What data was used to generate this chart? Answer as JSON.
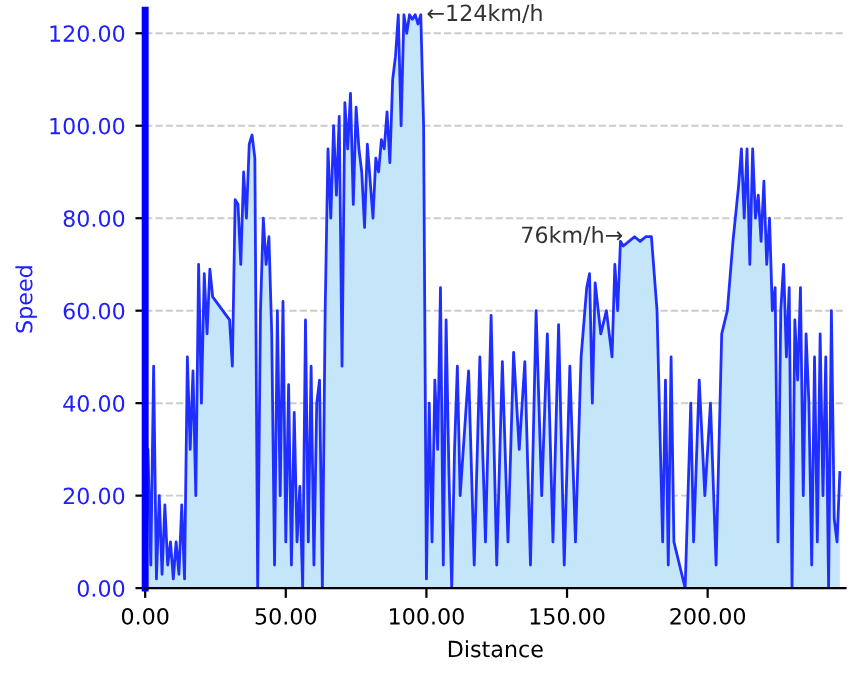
{
  "chart_data": {
    "type": "area",
    "xlabel": "Distance",
    "ylabel": "Speed",
    "xlim": [
      0,
      249
    ],
    "ylim": [
      0,
      125
    ],
    "xticks": [
      {
        "value": 0,
        "label": "0.00"
      },
      {
        "value": 50,
        "label": "50.00"
      },
      {
        "value": 100,
        "label": "100.00"
      },
      {
        "value": 150,
        "label": "150.00"
      },
      {
        "value": 200,
        "label": "200.00"
      }
    ],
    "yticks": [
      {
        "value": 0,
        "label": "0.00"
      },
      {
        "value": 20,
        "label": "20.00"
      },
      {
        "value": 40,
        "label": "40.00"
      },
      {
        "value": 60,
        "label": "60.00"
      },
      {
        "value": 80,
        "label": "80.00"
      },
      {
        "value": 100,
        "label": "100.00"
      },
      {
        "value": 120,
        "label": "120.00"
      }
    ],
    "grid": "y",
    "line_style": "solid",
    "annotations": [
      {
        "text": "←124km/h",
        "x": 100,
        "y": 124
      },
      {
        "text": "76km/h→",
        "x": 170,
        "y": 76
      }
    ],
    "series": [
      {
        "color": "#1f2fff",
        "x": [
          0,
          1,
          2,
          3,
          4,
          5,
          6,
          7,
          8,
          9,
          10,
          11,
          12,
          13,
          14,
          15,
          16,
          17,
          18,
          19,
          20,
          21,
          22,
          23,
          24,
          30,
          31,
          32,
          33,
          34,
          35,
          36,
          37,
          38,
          39,
          40,
          41,
          42,
          43,
          44,
          45,
          46,
          47,
          48,
          49,
          50,
          51,
          52,
          53,
          54,
          55,
          56,
          57,
          58,
          59,
          60,
          61,
          62,
          63,
          64,
          65,
          66,
          67,
          68,
          69,
          70,
          71,
          72,
          73,
          74,
          75,
          76,
          77,
          78,
          79,
          80,
          81,
          82,
          83,
          84,
          85,
          86,
          87,
          88,
          89,
          90,
          91,
          92,
          93,
          94,
          95,
          96,
          97,
          98,
          99,
          100,
          101,
          102,
          103,
          104,
          105,
          106,
          107,
          108,
          109,
          110,
          111,
          112,
          115,
          117,
          119,
          121,
          123,
          125,
          127,
          129,
          131,
          133,
          135,
          137,
          139,
          141,
          143,
          145,
          147,
          149,
          151,
          153,
          155,
          157,
          158,
          159,
          160,
          162,
          164,
          166,
          167,
          168,
          169,
          170,
          172,
          174,
          176,
          178,
          180,
          182,
          184,
          185,
          186,
          187,
          188,
          190,
          192,
          194,
          195,
          197,
          199,
          201,
          203,
          205,
          207,
          209,
          211,
          212,
          213,
          214,
          215,
          216,
          217,
          218,
          219,
          220,
          221,
          222,
          223,
          224,
          225,
          226,
          227,
          228,
          229,
          230,
          231,
          232,
          233,
          234,
          235,
          236,
          237,
          238,
          239,
          240,
          241,
          242,
          243,
          244,
          245,
          246,
          247
        ],
        "values": [
          0,
          30,
          5,
          48,
          2,
          20,
          3,
          18,
          5,
          10,
          2,
          10,
          3,
          18,
          2,
          50,
          30,
          47,
          20,
          70,
          40,
          68,
          55,
          69,
          63,
          58,
          48,
          84,
          83,
          70,
          90,
          80,
          96,
          98,
          93,
          0,
          60,
          80,
          70,
          76,
          55,
          5,
          60,
          20,
          62,
          10,
          44,
          5,
          38,
          10,
          22,
          0,
          58,
          10,
          48,
          5,
          40,
          45,
          0,
          60,
          95,
          80,
          100,
          85,
          102,
          48,
          105,
          95,
          107,
          83,
          104,
          95,
          90,
          78,
          96,
          88,
          80,
          93,
          90,
          97,
          95,
          103,
          92,
          110,
          115,
          124,
          100,
          124,
          120,
          124,
          123,
          124,
          122,
          124,
          100,
          2,
          40,
          10,
          45,
          30,
          65,
          5,
          58,
          25,
          0,
          30,
          48,
          20,
          47,
          5,
          50,
          10,
          59,
          5,
          49,
          10,
          51,
          30,
          49,
          5,
          60,
          20,
          55,
          10,
          57,
          5,
          48,
          10,
          50,
          65,
          68,
          40,
          66,
          55,
          60,
          50,
          70,
          60,
          75,
          74,
          75,
          76,
          75,
          76,
          76,
          60,
          10,
          45,
          5,
          50,
          10,
          5,
          0,
          40,
          10,
          45,
          20,
          40,
          5,
          55,
          60,
          75,
          87,
          95,
          80,
          95,
          70,
          95,
          80,
          85,
          75,
          88,
          70,
          80,
          60,
          65,
          10,
          60,
          70,
          50,
          65,
          0,
          58,
          45,
          65,
          20,
          55,
          40,
          5,
          50,
          10,
          55,
          20,
          50,
          0,
          60,
          15,
          10,
          25
        ]
      }
    ]
  }
}
